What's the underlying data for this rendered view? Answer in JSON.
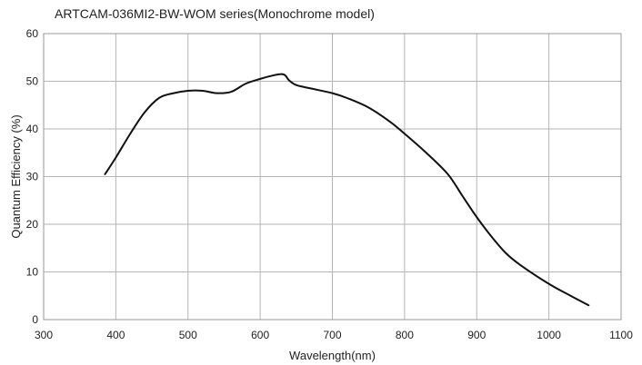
{
  "chart_data": {
    "type": "line",
    "title": "ARTCAM-036MI2-BW-WOM series(Monochrome model)",
    "xlabel": "Wavelength(nm)",
    "ylabel": "Quantum  Efficiency (%)",
    "xlim": [
      300,
      1100
    ],
    "ylim": [
      0,
      60
    ],
    "x_ticks": [
      300,
      400,
      500,
      600,
      700,
      800,
      900,
      1000,
      1100
    ],
    "y_ticks": [
      0,
      10,
      20,
      30,
      40,
      50,
      60
    ],
    "grid": true,
    "legend": "none",
    "series": [
      {
        "color": "#111111",
        "x": [
          385,
          400,
          420,
          440,
          460,
          480,
          500,
          520,
          540,
          560,
          580,
          600,
          620,
          630,
          635,
          640,
          650,
          670,
          700,
          720,
          750,
          780,
          800,
          830,
          860,
          880,
          900,
          920,
          940,
          960,
          1000,
          1030,
          1055
        ],
        "y": [
          30.5,
          34,
          39,
          43.5,
          46.5,
          47.5,
          48,
          48,
          47.5,
          47.8,
          49.5,
          50.5,
          51.3,
          51.5,
          51.2,
          50.2,
          49.2,
          48.5,
          47.5,
          46.5,
          44.5,
          41.5,
          39,
          35,
          30.5,
          26,
          21.5,
          17.5,
          14,
          11.5,
          7.5,
          5,
          3
        ]
      }
    ]
  }
}
